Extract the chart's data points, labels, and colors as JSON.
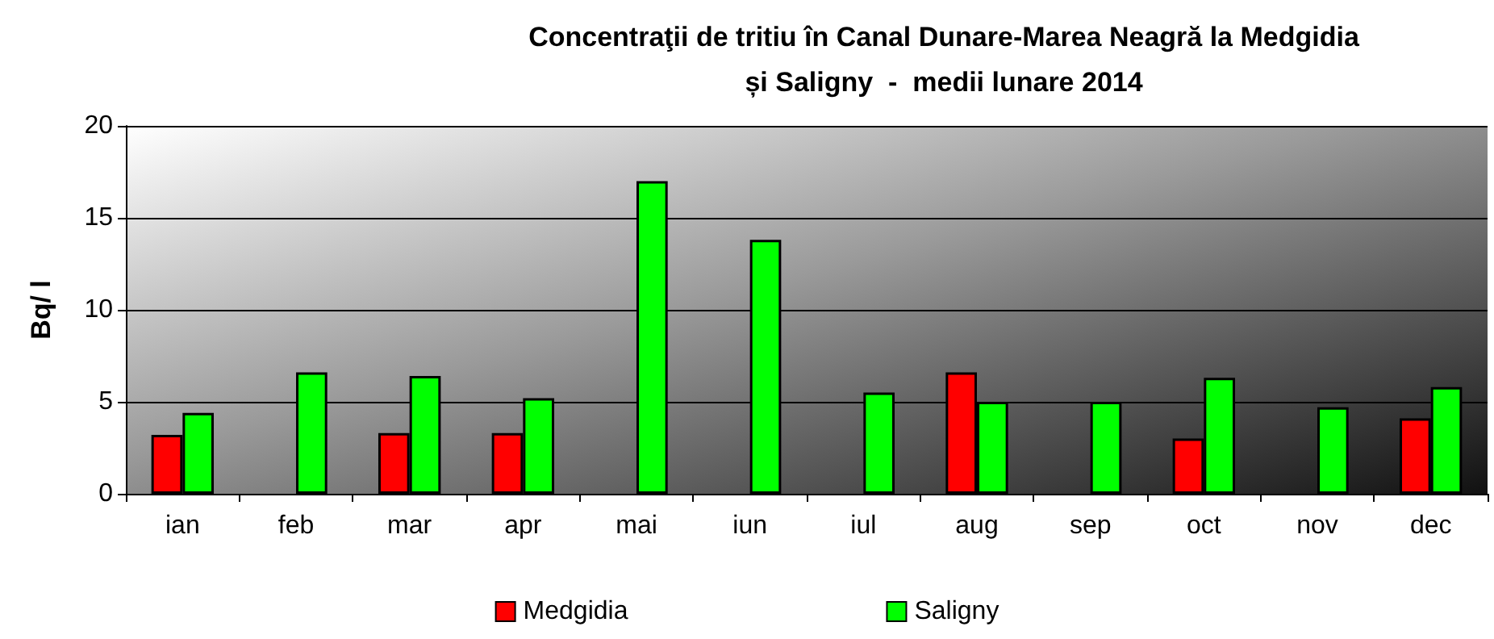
{
  "chart_data": {
    "type": "bar",
    "title": "Concentraţii de tritiu în Canal Dunare-Marea Neagră la Medgidia\nși Saligny  -  medii lunare 2014",
    "ylabel": "Bq/ l",
    "categories": [
      "ian",
      "feb",
      "mar",
      "apr",
      "mai",
      "iun",
      "iul",
      "aug",
      "sep",
      "oct",
      "nov",
      "dec"
    ],
    "series": [
      {
        "name": "Medgidia",
        "color": "#ff0000",
        "values": [
          3.2,
          null,
          3.3,
          3.3,
          null,
          null,
          null,
          6.6,
          null,
          3.0,
          null,
          4.1
        ]
      },
      {
        "name": "Saligny",
        "color": "#00ff00",
        "values": [
          4.4,
          6.6,
          6.4,
          5.2,
          17.0,
          13.8,
          5.5,
          5.0,
          5.0,
          6.3,
          4.7,
          5.8
        ]
      }
    ],
    "ylim": [
      0,
      20
    ],
    "yticks": [
      0,
      5,
      10,
      15,
      20
    ],
    "grid": "y",
    "legend": "bottom"
  }
}
